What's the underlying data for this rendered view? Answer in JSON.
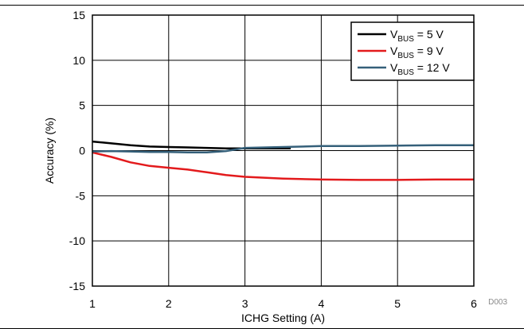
{
  "chart_data": {
    "type": "line",
    "title": "",
    "xlabel": "ICHG Setting (A)",
    "ylabel": "Accuracy (%)",
    "xlim": [
      1,
      6
    ],
    "ylim": [
      -15,
      15
    ],
    "xticks": [
      1,
      2,
      3,
      4,
      5,
      6
    ],
    "yticks": [
      -15,
      -10,
      -5,
      0,
      5,
      10,
      15
    ],
    "grid": true,
    "legend_position": "top-right",
    "figure_id": "D003",
    "series": [
      {
        "name": "VBUS = 5 V",
        "label_parts": {
          "main": "V",
          "sub": "BUS",
          "rest": " = 5 V"
        },
        "color": "#000000",
        "x": [
          1.0,
          1.25,
          1.5,
          1.75,
          2.0,
          2.25,
          2.5,
          2.75,
          3.0,
          3.25,
          3.5,
          3.6
        ],
        "y": [
          1.0,
          0.8,
          0.6,
          0.45,
          0.4,
          0.35,
          0.3,
          0.25,
          0.25,
          0.25,
          0.25,
          0.25
        ]
      },
      {
        "name": "VBUS = 9 V",
        "label_parts": {
          "main": "V",
          "sub": "BUS",
          "rest": " = 9 V"
        },
        "color": "#e31a1c",
        "x": [
          1.0,
          1.25,
          1.5,
          1.75,
          2.0,
          2.25,
          2.5,
          2.75,
          3.0,
          3.5,
          4.0,
          4.5,
          5.0,
          5.5,
          6.0
        ],
        "y": [
          -0.2,
          -0.7,
          -1.3,
          -1.7,
          -1.9,
          -2.1,
          -2.4,
          -2.7,
          -2.9,
          -3.1,
          -3.2,
          -3.25,
          -3.25,
          -3.2,
          -3.2
        ]
      },
      {
        "name": "VBUS = 12 V",
        "label_parts": {
          "main": "V",
          "sub": "BUS",
          "rest": " = 12 V"
        },
        "color": "#35607a",
        "x": [
          1.0,
          1.25,
          1.5,
          1.75,
          2.0,
          2.25,
          2.5,
          2.75,
          3.0,
          3.5,
          4.0,
          4.5,
          5.0,
          5.5,
          6.0
        ],
        "y": [
          -0.1,
          -0.05,
          -0.1,
          -0.15,
          -0.15,
          -0.2,
          -0.2,
          -0.05,
          0.3,
          0.4,
          0.5,
          0.5,
          0.55,
          0.6,
          0.6
        ]
      }
    ]
  }
}
